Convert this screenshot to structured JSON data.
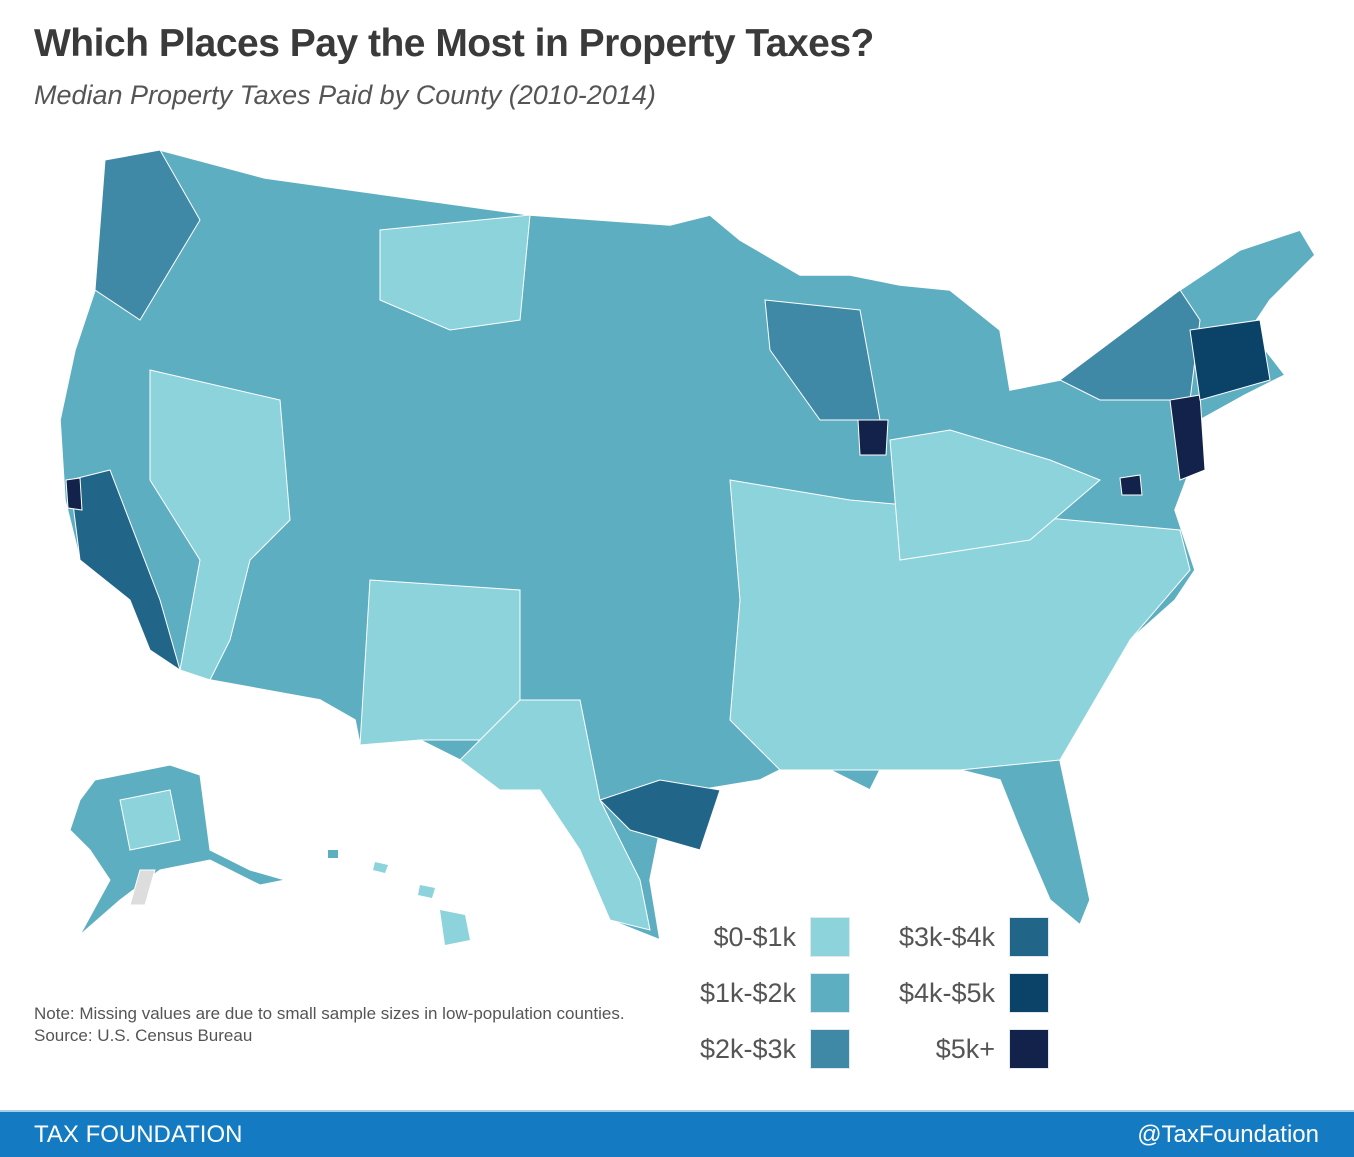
{
  "header": {
    "title": "Which Places Pay the Most in Property Taxes?",
    "subtitle": "Median Property Taxes Paid by County (2010-2014)"
  },
  "legend": [
    {
      "label": "$0-$1k",
      "color": "#8dd3db"
    },
    {
      "label": "$1k-$2k",
      "color": "#5eaec2"
    },
    {
      "label": "$2k-$3k",
      "color": "#3f89a6"
    },
    {
      "label": "$3k-$4k",
      "color": "#216688"
    },
    {
      "label": "$4k-$5k",
      "color": "#0b4268"
    },
    {
      "label": "$5k+",
      "color": "#13224a"
    }
  ],
  "missing_color": "#dddddd",
  "note": {
    "line1": "Note: Missing values are due to small sample sizes in low-population counties.",
    "source": "Source: U.S. Census Bureau"
  },
  "footer": {
    "brand": "TAX FOUNDATION",
    "handle": "@TaxFoundation",
    "color": "#147bc2"
  }
}
